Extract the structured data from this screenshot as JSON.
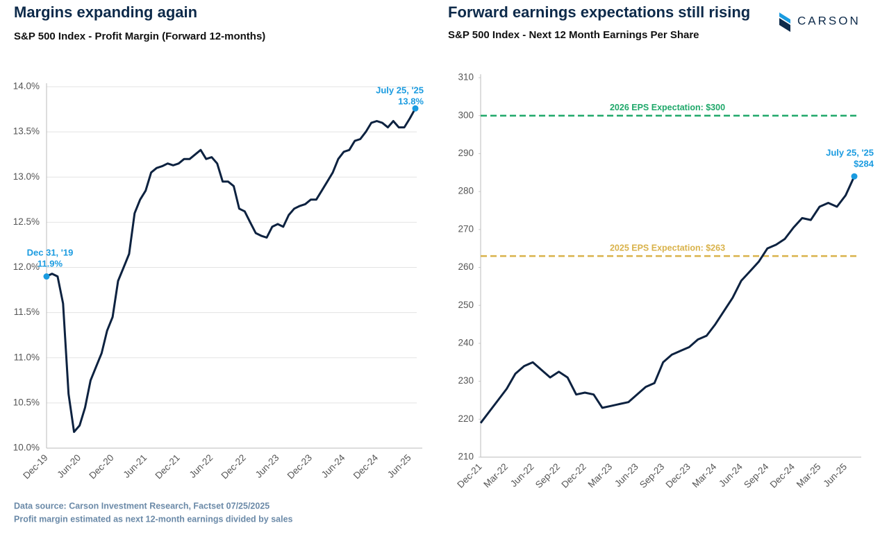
{
  "chart_data": [
    {
      "type": "line",
      "title": "Margins expanding again",
      "subtitle": "S&P 500 Index - Profit Margin (Forward 12-months)",
      "categories": [
        "Dec-19",
        null,
        null,
        null,
        null,
        null,
        "Jun-20",
        null,
        null,
        null,
        null,
        null,
        "Dec-20",
        null,
        null,
        null,
        null,
        null,
        "Jun-21",
        null,
        null,
        null,
        null,
        null,
        "Dec-21",
        null,
        null,
        null,
        null,
        null,
        "Jun-22",
        null,
        null,
        null,
        null,
        null,
        "Dec-22",
        null,
        null,
        null,
        null,
        null,
        "Jun-23",
        null,
        null,
        null,
        null,
        null,
        "Dec-23",
        null,
        null,
        null,
        null,
        null,
        "Jun-24",
        null,
        null,
        null,
        null,
        null,
        "Dec-24",
        null,
        null,
        null,
        null,
        null,
        "Jun-25",
        null
      ],
      "values": [
        11.9,
        11.93,
        11.9,
        11.6,
        10.6,
        10.18,
        10.25,
        10.45,
        10.75,
        10.9,
        11.05,
        11.3,
        11.45,
        11.85,
        12.0,
        12.15,
        12.6,
        12.75,
        12.85,
        13.05,
        13.1,
        13.12,
        13.15,
        13.13,
        13.15,
        13.2,
        13.2,
        13.25,
        13.3,
        13.2,
        13.22,
        13.15,
        12.95,
        12.95,
        12.9,
        12.65,
        12.62,
        12.5,
        12.38,
        12.35,
        12.33,
        12.45,
        12.48,
        12.45,
        12.58,
        12.65,
        12.68,
        12.7,
        12.75,
        12.75,
        12.85,
        12.95,
        13.05,
        13.2,
        13.28,
        13.3,
        13.4,
        13.42,
        13.5,
        13.6,
        13.62,
        13.6,
        13.55,
        13.62,
        13.55,
        13.55,
        13.65,
        13.76
      ],
      "color": "#0d2240",
      "point_color": "#1a9be0",
      "ylim": [
        10,
        14
      ],
      "yticks": [
        {
          "value": 10,
          "label": "10.0%"
        },
        {
          "value": 10.5,
          "label": "10.5%"
        },
        {
          "value": 11,
          "label": "11.0%"
        },
        {
          "value": 11.5,
          "label": "11.5%"
        },
        {
          "value": 12,
          "label": "12.0%"
        },
        {
          "value": 12.5,
          "label": "12.5%"
        },
        {
          "value": 13,
          "label": "13.0%"
        },
        {
          "value": 13.5,
          "label": "13.5%"
        },
        {
          "value": 14,
          "label": "14.0%"
        }
      ],
      "grid": true,
      "annotations": [
        {
          "date": "Dec 31, '19",
          "text": "11.9%"
        },
        {
          "date": "July 25, '25",
          "text": "13.8%"
        }
      ]
    },
    {
      "type": "line",
      "title": "Forward earnings expectations still rising",
      "subtitle": "S&P 500 Index - Next 12 Month Earnings Per Share",
      "categories": [
        "Dec-21",
        null,
        null,
        "Mar-22",
        null,
        null,
        "Jun-22",
        null,
        null,
        "Sep-22",
        null,
        null,
        "Dec-22",
        null,
        null,
        "Mar-23",
        null,
        null,
        "Jun-23",
        null,
        null,
        "Sep-23",
        null,
        null,
        "Dec-23",
        null,
        null,
        "Mar-24",
        null,
        null,
        "Jun-24",
        null,
        null,
        "Sep-24",
        null,
        null,
        "Dec-24",
        null,
        null,
        "Mar-25",
        null,
        null,
        "Jun-25",
        null
      ],
      "values": [
        219,
        222,
        225,
        228,
        232,
        234,
        235,
        233,
        231,
        232.5,
        231,
        226.5,
        227,
        226.5,
        223,
        223.5,
        224,
        224.5,
        226.5,
        228.5,
        229.5,
        235,
        237,
        238,
        239,
        241,
        242,
        245,
        248.5,
        252,
        256.5,
        259,
        261.5,
        265,
        266,
        267.5,
        270.5,
        273,
        272.5,
        276,
        277,
        276,
        279,
        284
      ],
      "color": "#0d2240",
      "point_color": "#1a9be0",
      "ylim": [
        210,
        310
      ],
      "yticks": [
        210,
        220,
        230,
        240,
        250,
        260,
        270,
        280,
        290,
        300,
        310
      ],
      "grid": false,
      "reference_lines": [
        {
          "value": 300,
          "label": "2026 EPS Expectation: $300",
          "color": "#1fa86a"
        },
        {
          "value": 263,
          "label": "2025 EPS Expectation: $263",
          "color": "#d9b24a"
        }
      ],
      "annotations": [
        {
          "date": "July 25, '25",
          "text": "$284"
        }
      ]
    }
  ],
  "logo": "CARSON",
  "footer": [
    "Data source: Carson Investment Research, Factset   07/25/2025",
    "Profit margin estimated as next 12-month earnings divided by sales"
  ]
}
